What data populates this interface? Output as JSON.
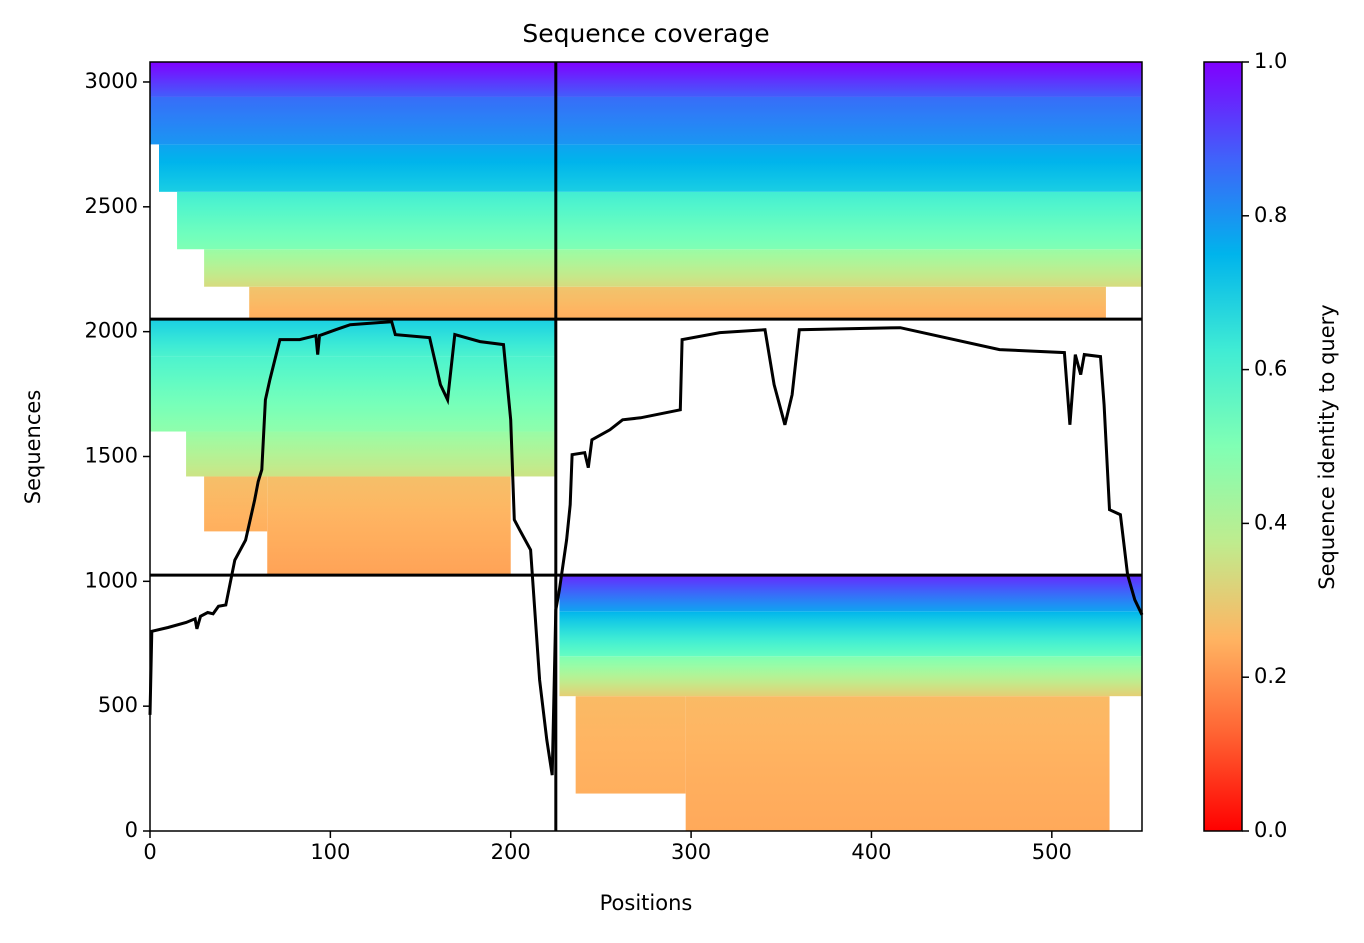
{
  "chart_data": {
    "type": "coverage",
    "title": "Sequence coverage",
    "xlabel": "Positions",
    "ylabel": "Sequences",
    "xlim": [
      0,
      550
    ],
    "xticks": [
      0,
      100,
      200,
      300,
      400,
      500
    ],
    "ylim": [
      0,
      3080
    ],
    "yticks": [
      0,
      500,
      1000,
      1500,
      2000,
      2500,
      3000
    ],
    "colormap": "rainbow_r",
    "colorbar": {
      "label": "Sequence identity to query",
      "lim": [
        0,
        1
      ],
      "ticks": [
        {
          "value": 0,
          "label": "0.0"
        },
        {
          "value": 0.2,
          "label": "0.2"
        },
        {
          "value": 0.4,
          "label": "0.4"
        },
        {
          "value": 0.6,
          "label": "0.6"
        },
        {
          "value": 0.8,
          "label": "0.8"
        },
        {
          "value": 1,
          "label": "1.0"
        }
      ]
    },
    "bands": [
      {
        "x": [
          297,
          532
        ],
        "y": [
          0,
          540
        ],
        "identity": [
          0.23,
          0.26
        ]
      },
      {
        "x": [
          236,
          297
        ],
        "y": [
          150,
          540
        ],
        "identity": [
          0.24,
          0.26
        ]
      },
      {
        "x": [
          227,
          550
        ],
        "y": [
          540,
          700
        ],
        "identity": [
          0.3,
          0.5
        ]
      },
      {
        "x": [
          227,
          550
        ],
        "y": [
          700,
          880
        ],
        "identity": [
          0.55,
          0.75
        ]
      },
      {
        "x": [
          227,
          550
        ],
        "y": [
          880,
          1025
        ],
        "identity": [
          0.78,
          0.95
        ]
      },
      {
        "x": [
          65,
          200
        ],
        "y": [
          1025,
          1420
        ],
        "identity": [
          0.22,
          0.27
        ]
      },
      {
        "x": [
          30,
          65
        ],
        "y": [
          1200,
          1420
        ],
        "identity": [
          0.24,
          0.27
        ]
      },
      {
        "x": [
          20,
          225
        ],
        "y": [
          1420,
          1600
        ],
        "identity": [
          0.35,
          0.45
        ]
      },
      {
        "x": [
          0,
          225
        ],
        "y": [
          1600,
          1900
        ],
        "identity": [
          0.47,
          0.6
        ]
      },
      {
        "x": [
          0,
          225
        ],
        "y": [
          1900,
          2050
        ],
        "identity": [
          0.6,
          0.7
        ]
      },
      {
        "x": [
          55,
          530
        ],
        "y": [
          2050,
          2180
        ],
        "identity": [
          0.24,
          0.28
        ]
      },
      {
        "x": [
          30,
          550
        ],
        "y": [
          2180,
          2330
        ],
        "identity": [
          0.33,
          0.45
        ]
      },
      {
        "x": [
          15,
          550
        ],
        "y": [
          2330,
          2560
        ],
        "identity": [
          0.5,
          0.62
        ]
      },
      {
        "x": [
          5,
          550
        ],
        "y": [
          2560,
          2750
        ],
        "identity": [
          0.7,
          0.78
        ]
      },
      {
        "x": [
          0,
          550
        ],
        "y": [
          2750,
          2940
        ],
        "identity": [
          0.8,
          0.86
        ]
      },
      {
        "x": [
          0,
          550
        ],
        "y": [
          2940,
          3080
        ],
        "identity": [
          0.88,
          1.0
        ]
      }
    ],
    "dividers": {
      "x": [
        225
      ],
      "y": [
        1025,
        2050
      ]
    },
    "series": [
      {
        "name": "coverage",
        "color": "#000000",
        "x": [
          0,
          1,
          10,
          20,
          25,
          26,
          28,
          32,
          35,
          38,
          42,
          47,
          53,
          58,
          60,
          62,
          64,
          66.5,
          72,
          83,
          92,
          93,
          94,
          103,
          111,
          134,
          136,
          155,
          161,
          165,
          169,
          183,
          196,
          200,
          202,
          205,
          211,
          216,
          220,
          223,
          225,
          227,
          231,
          233,
          234,
          241,
          243,
          245,
          255,
          262,
          272,
          294,
          295,
          316,
          341,
          346,
          352,
          356,
          360,
          416,
          471,
          507,
          510,
          513,
          516,
          518,
          527,
          529,
          532,
          538,
          542,
          546,
          550
        ],
        "values": [
          465,
          800,
          815,
          835,
          850,
          810,
          860,
          875,
          870,
          900,
          905,
          1085,
          1165,
          1325,
          1400,
          1447,
          1727,
          1808,
          1968,
          1968,
          1984,
          1908,
          1984,
          2008,
          2028,
          2040,
          1988,
          1976,
          1788,
          1727,
          1988,
          1960,
          1948,
          1647,
          1247,
          1206,
          1126,
          605,
          365,
          224,
          886,
          966,
          1166,
          1307,
          1507,
          1515,
          1455,
          1567,
          1607,
          1647,
          1655,
          1687,
          1968,
          1996,
          2008,
          1788,
          1627,
          1747,
          2008,
          2016,
          1928,
          1916,
          1627,
          1908,
          1828,
          1908,
          1900,
          1707,
          1287,
          1267,
          1026,
          926,
          866
        ]
      }
    ]
  }
}
